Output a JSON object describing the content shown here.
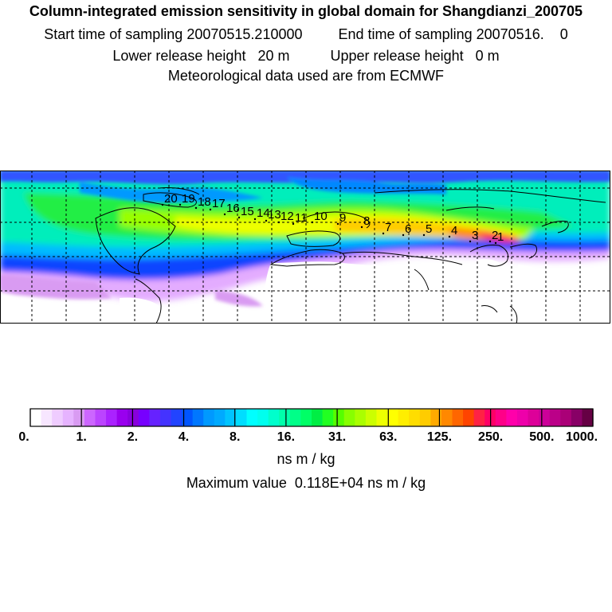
{
  "title": "Column-integrated emission sensitivity in global domain for Shangdianzi_200705",
  "sampling": {
    "start_label": "Start time of sampling",
    "start_value": "20070515.210000",
    "end_label": "End time of sampling",
    "end_value": "20070516.",
    "end_tail": "0"
  },
  "release": {
    "lower_label": "Lower release height",
    "lower_value": "20 m",
    "upper_label": "Upper release height",
    "upper_value": "0 m"
  },
  "meteo_line": "Meteorological data used are from ECMWF",
  "trajectory_labels": [
    "1",
    "2",
    "3",
    "4",
    "5",
    "6",
    "7",
    "8",
    "9",
    "10",
    "11",
    "12",
    "13",
    "14",
    "15",
    "16",
    "17",
    "18",
    "19",
    "20"
  ],
  "colorbar": {
    "tick_labels": [
      "0.",
      "1.",
      "2.",
      "4.",
      "8.",
      "16.",
      "31.",
      "63.",
      "125.",
      "250.",
      "500.",
      "1000."
    ],
    "colors": [
      "#ffffff",
      "#f7e6ff",
      "#efccff",
      "#e6b3ff",
      "#d99bf2",
      "#cc66ff",
      "#bb44ff",
      "#aa22ff",
      "#9900ee",
      "#8800dd",
      "#7700ff",
      "#6622ff",
      "#4433ff",
      "#2244ff",
      "#0055ff",
      "#0077ff",
      "#0099ff",
      "#00aaff",
      "#00c4ff",
      "#00ddff",
      "#00ffff",
      "#00ffee",
      "#00ffcc",
      "#00ffaa",
      "#00ff88",
      "#00ff66",
      "#00ee44",
      "#22ff22",
      "#55ff00",
      "#88ff00",
      "#aaff00",
      "#ccff00",
      "#eeff00",
      "#ffff00",
      "#ffee00",
      "#ffdd00",
      "#ffcc00",
      "#ffaa00",
      "#ff8800",
      "#ff6600",
      "#ff4400",
      "#ff2244",
      "#ff0066",
      "#ff0088",
      "#ff00aa",
      "#ee00aa",
      "#dd0099",
      "#cc0099",
      "#bb0088",
      "#aa0077",
      "#880066",
      "#660044"
    ],
    "units": "ns m / kg"
  },
  "maximum": {
    "label": "Maximum value",
    "value": "0.118E+04",
    "units": "ns m / kg"
  }
}
